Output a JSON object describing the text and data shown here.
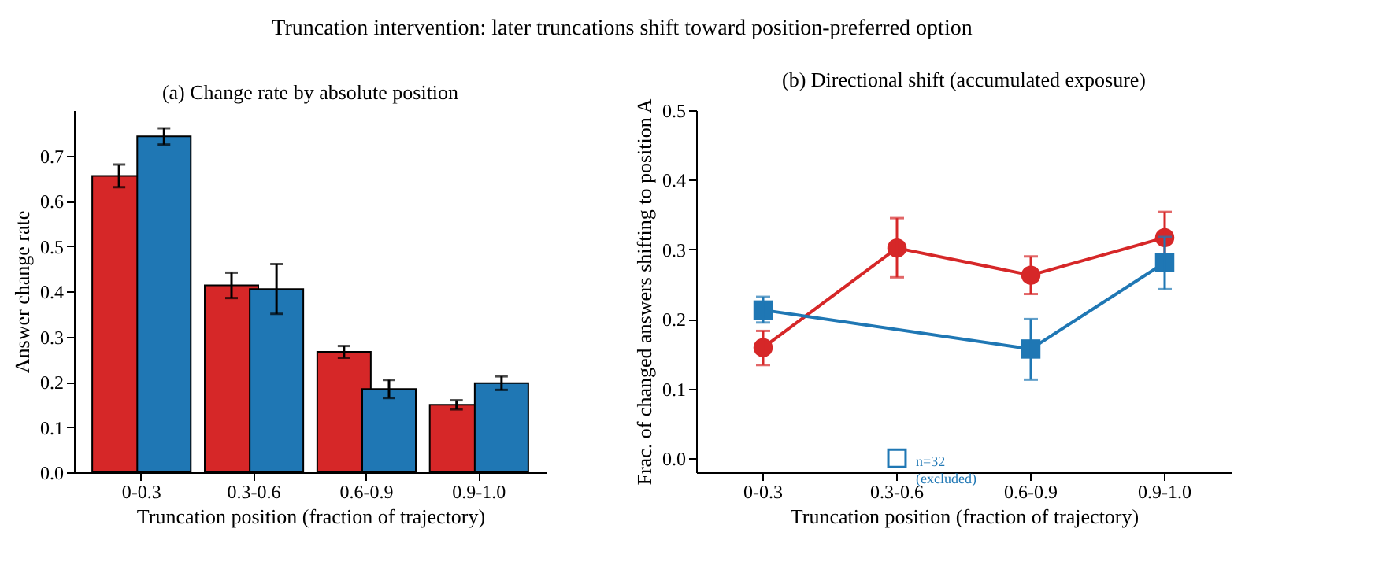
{
  "chart_data": [
    {
      "type": "bar",
      "title": "(a) Change rate by absolute position",
      "xlabel": "Truncation position (fraction of trajectory)",
      "ylabel": "Answer change rate",
      "annotations": [
        "Truncation intervention: later truncations shift toward position-preferred option"
      ],
      "categories": [
        "0-0.3",
        "0.3-0.6",
        "0.6-0.9",
        "0.9-1.0"
      ],
      "series": [
        {
          "color": "#d62728",
          "values": [
            0.655,
            0.413,
            0.266,
            0.149
          ],
          "errors": [
            0.025,
            0.028,
            0.013,
            0.01
          ]
        },
        {
          "color": "#1f77b4",
          "values": [
            0.742,
            0.405,
            0.184,
            0.197
          ],
          "errors": [
            0.018,
            0.055,
            0.02,
            0.015
          ]
        }
      ],
      "ylim": [
        0,
        0.8
      ],
      "yticks": [
        {
          "value": 0,
          "label": "0.0"
        },
        0.1,
        0.2,
        0.3,
        0.4,
        0.5,
        0.6,
        0.7
      ],
      "grid": false,
      "legend": false
    },
    {
      "type": "line",
      "title": "(b) Directional shift (accumulated exposure)",
      "xlabel": "Truncation position (fraction of trajectory)",
      "ylabel": "Frac. of changed answers shifting to position A",
      "categories": [
        "0-0.3",
        "0.3-0.6",
        "0.6-0.9",
        "0.9-1.0"
      ],
      "series": [
        {
          "color": "#d62728",
          "marker": "circle",
          "values": [
            0.159,
            0.302,
            0.263,
            0.317
          ],
          "errors": [
            [
              0.134,
              0.183
            ],
            [
              0.26,
              0.345
            ],
            [
              0.236,
              0.29
            ],
            [
              0.29,
              0.354
            ]
          ]
        },
        {
          "color": "#1f77b4",
          "marker": "square",
          "x": [
            "0-0.3",
            "0.6-0.9",
            "0.9-1.0"
          ],
          "values": [
            0.213,
            0.157,
            0.281
          ],
          "errors": [
            [
              0.195,
              0.232
            ],
            [
              0.113,
              0.2
            ],
            [
              0.243,
              0.318
            ]
          ]
        },
        {
          "type": "scatter",
          "color": "#1f77b4",
          "marker": "square",
          "x": [
            "0.3-0.6"
          ],
          "values": [
            0
          ]
        }
      ],
      "annotations": [
        {
          "text": "n=32\n(excluded)",
          "x": "0.3-0.6",
          "y": 0
        }
      ],
      "ylim": [
        -0.02,
        0.5
      ],
      "yticks": [
        {
          "value": 0,
          "label": "0.0"
        },
        0.1,
        0.2,
        0.3,
        0.4,
        0.5
      ],
      "grid": false
    }
  ]
}
